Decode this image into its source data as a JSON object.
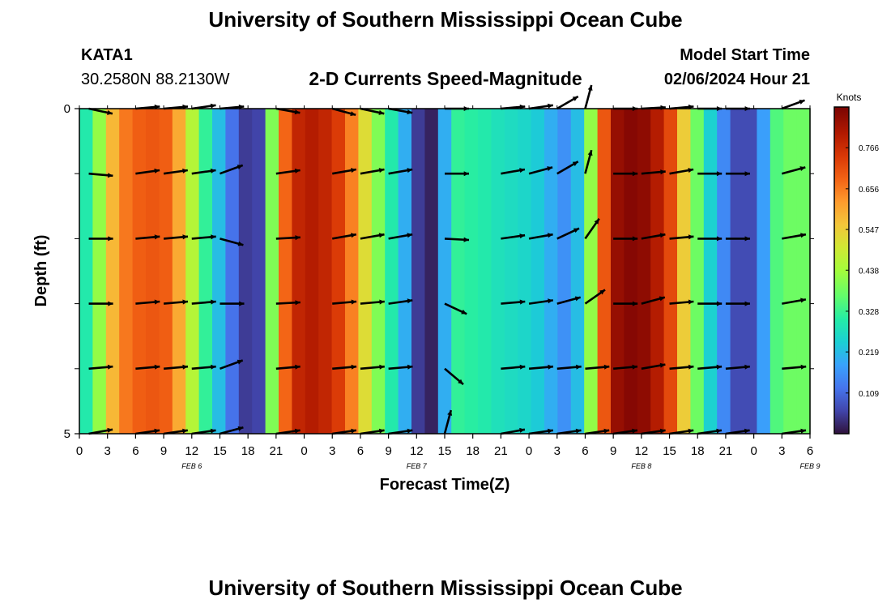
{
  "header": {
    "title": "University of Southern Mississippi Ocean Cube",
    "station_id": "KATA1",
    "coords": "30.2580N  88.2130W",
    "plot_title": "2-D Currents Speed-Magnitude",
    "model_start_label": "Model Start Time",
    "model_start_value": "02/06/2024 Hour 21"
  },
  "footer": {
    "title": "University of Southern Mississippi Ocean Cube"
  },
  "chart_data": {
    "type": "heatmap",
    "title": "2-D Currents Speed-Magnitude",
    "xlabel": "Forecast Time(Z)",
    "ylabel": "Depth (ft)",
    "x_range_hours": [
      0,
      78
    ],
    "x_ticks": [
      "0",
      "3",
      "6",
      "9",
      "12",
      "15",
      "18",
      "21",
      "0",
      "3",
      "6",
      "9",
      "12",
      "15",
      "18",
      "21",
      "0",
      "3",
      "6",
      "9",
      "12",
      "15",
      "18",
      "21",
      "0",
      "3",
      "6"
    ],
    "date_labels": [
      {
        "label": "FEB 6",
        "hour": 12
      },
      {
        "label": "FEB 7",
        "hour": 36
      },
      {
        "label": "FEB 8",
        "hour": 60
      },
      {
        "label": "FEB 9",
        "hour": 78
      }
    ],
    "y_range_ft": [
      0,
      5
    ],
    "y_tick_labels": [
      {
        "depth": 0,
        "label": "0"
      },
      {
        "depth": 5,
        "label": "5"
      }
    ],
    "y_minor_ticks": [
      1,
      2,
      3,
      4
    ],
    "colorbar": {
      "unit": "Knots",
      "min": 0.0,
      "max": 0.875,
      "ticks": [
        "0.109",
        "0.219",
        "0.328",
        "0.438",
        "0.547",
        "0.656",
        "0.766"
      ],
      "tick_values": [
        0.109,
        0.219,
        0.328,
        0.438,
        0.547,
        0.656,
        0.766
      ]
    },
    "speed_knots": [
      0.3,
      0.42,
      0.58,
      0.66,
      0.69,
      0.7,
      0.69,
      0.6,
      0.46,
      0.32,
      0.22,
      0.12,
      0.05,
      0.06,
      0.4,
      0.68,
      0.78,
      0.8,
      0.78,
      0.74,
      0.65,
      0.52,
      0.4,
      0.3,
      0.2,
      0.05,
      0.02,
      0.2,
      0.32,
      0.31,
      0.3,
      0.28,
      0.27,
      0.26,
      0.24,
      0.2,
      0.16,
      0.22,
      0.42,
      0.7,
      0.84,
      0.86,
      0.85,
      0.8,
      0.72,
      0.55,
      0.38,
      0.25,
      0.15,
      0.07,
      0.07,
      0.18,
      0.35,
      0.38,
      0.38
    ],
    "arrow_hours": [
      1,
      6,
      9,
      12,
      15,
      21,
      27,
      30,
      33,
      39,
      45,
      48,
      51,
      54,
      57,
      60,
      63,
      66,
      69,
      75
    ],
    "arrow_depths_ft": [
      0,
      1,
      2,
      3,
      4,
      5
    ],
    "arrow_directions_deg": [
      [
        -12,
        5,
        5,
        8,
        5,
        -10,
        -15,
        -12,
        -10,
        0,
        5,
        8,
        30,
        75,
        0,
        3,
        5,
        0,
        0,
        20
      ],
      [
        -5,
        8,
        8,
        8,
        20,
        8,
        10,
        10,
        10,
        0,
        10,
        15,
        30,
        75,
        0,
        5,
        10,
        0,
        0,
        15
      ],
      [
        0,
        5,
        5,
        5,
        -15,
        3,
        10,
        10,
        10,
        -3,
        8,
        10,
        25,
        55,
        0,
        10,
        5,
        0,
        0,
        10
      ],
      [
        0,
        5,
        5,
        5,
        0,
        3,
        5,
        5,
        8,
        -25,
        5,
        8,
        15,
        35,
        0,
        15,
        5,
        0,
        0,
        10
      ],
      [
        5,
        5,
        5,
        5,
        20,
        5,
        5,
        5,
        5,
        -40,
        5,
        5,
        5,
        5,
        5,
        10,
        5,
        5,
        5,
        5
      ],
      [
        10,
        8,
        8,
        8,
        15,
        8,
        8,
        8,
        8,
        75,
        10,
        8,
        8,
        8,
        8,
        8,
        8,
        8,
        8,
        8
      ]
    ]
  }
}
